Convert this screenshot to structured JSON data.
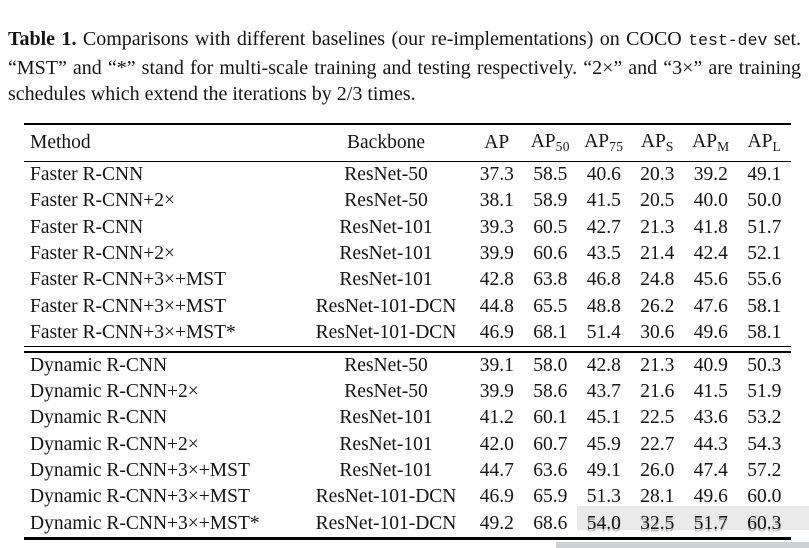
{
  "page": {
    "background": "#ffffff",
    "text_color": "#141414",
    "rule_color": "#000000"
  },
  "caption": {
    "label": "Table 1.",
    "text_before_mono": " Comparisons with different baselines (our re-implementations) on COCO ",
    "mono": "test-dev",
    "text_after_mono": " set. “MST” and “*” stand for multi-scale training and testing respectively. “2×” and “3×” are training schedules which extend the iterations by 2/3 times."
  },
  "table": {
    "columns": [
      {
        "label": "Method",
        "sub": ""
      },
      {
        "label": "Backbone",
        "sub": ""
      },
      {
        "label": "AP",
        "sub": ""
      },
      {
        "label": "AP",
        "sub": "50"
      },
      {
        "label": "AP",
        "sub": "75"
      },
      {
        "label": "AP",
        "sub": "S"
      },
      {
        "label": "AP",
        "sub": "M"
      },
      {
        "label": "AP",
        "sub": "L"
      }
    ],
    "groups": [
      {
        "name": "faster-rcnn-baselines",
        "rows": [
          [
            "Faster R-CNN",
            "ResNet-50",
            "37.3",
            "58.5",
            "40.6",
            "20.3",
            "39.2",
            "49.1"
          ],
          [
            "Faster R-CNN+2×",
            "ResNet-50",
            "38.1",
            "58.9",
            "41.5",
            "20.5",
            "40.0",
            "50.0"
          ],
          [
            "Faster R-CNN",
            "ResNet-101",
            "39.3",
            "60.5",
            "42.7",
            "21.3",
            "41.8",
            "51.7"
          ],
          [
            "Faster R-CNN+2×",
            "ResNet-101",
            "39.9",
            "60.6",
            "43.5",
            "21.4",
            "42.4",
            "52.1"
          ],
          [
            "Faster R-CNN+3×+MST",
            "ResNet-101",
            "42.8",
            "63.8",
            "46.8",
            "24.8",
            "45.6",
            "55.6"
          ],
          [
            "Faster R-CNN+3×+MST",
            "ResNet-101-DCN",
            "44.8",
            "65.5",
            "48.8",
            "26.2",
            "47.6",
            "58.1"
          ],
          [
            "Faster R-CNN+3×+MST*",
            "ResNet-101-DCN",
            "46.9",
            "68.1",
            "51.4",
            "30.6",
            "49.6",
            "58.1"
          ]
        ]
      },
      {
        "name": "dynamic-rcnn-results",
        "rows": [
          [
            "Dynamic R-CNN",
            "ResNet-50",
            "39.1",
            "58.0",
            "42.8",
            "21.3",
            "40.9",
            "50.3"
          ],
          [
            "Dynamic R-CNN+2×",
            "ResNet-50",
            "39.9",
            "58.6",
            "43.7",
            "21.6",
            "41.5",
            "51.9"
          ],
          [
            "Dynamic R-CNN",
            "ResNet-101",
            "41.2",
            "60.1",
            "45.1",
            "22.5",
            "43.6",
            "53.2"
          ],
          [
            "Dynamic R-CNN+2×",
            "ResNet-101",
            "42.0",
            "60.7",
            "45.9",
            "22.7",
            "44.3",
            "54.3"
          ],
          [
            "Dynamic R-CNN+3×+MST",
            "ResNet-101",
            "44.7",
            "63.6",
            "49.1",
            "26.0",
            "47.4",
            "57.2"
          ],
          [
            "Dynamic R-CNN+3×+MST",
            "ResNet-101-DCN",
            "46.9",
            "65.9",
            "51.3",
            "28.1",
            "49.6",
            "60.0"
          ],
          [
            "Dynamic R-CNN+3×+MST*",
            "ResNet-101-DCN",
            "49.2",
            "68.6",
            "54.0",
            "32.5",
            "51.7",
            "60.3"
          ]
        ]
      }
    ]
  }
}
